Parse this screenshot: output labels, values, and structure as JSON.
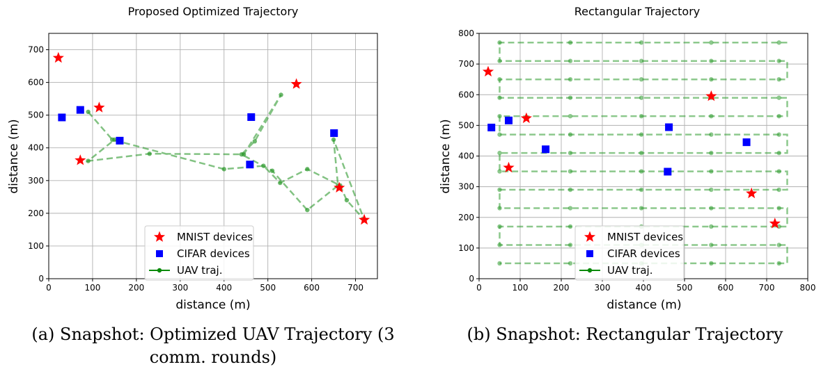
{
  "chart_data": [
    {
      "type": "scatter",
      "title": "Proposed Optimized Trajectory",
      "xlabel": "distance (m)",
      "ylabel": "distance (m)",
      "xlim": [
        0,
        750
      ],
      "ylim": [
        0,
        750
      ],
      "xticks": [
        0,
        100,
        200,
        300,
        400,
        500,
        600,
        700
      ],
      "yticks": [
        0,
        100,
        200,
        300,
        400,
        500,
        600,
        700
      ],
      "grid": true,
      "legend_position": "lower-center",
      "series": [
        {
          "name": "MNIST devices",
          "marker": "star",
          "color": "#ff0000",
          "x": [
            22,
            115,
            72,
            565,
            663,
            720
          ],
          "y": [
            675,
            523,
            362,
            595,
            278,
            180
          ]
        },
        {
          "name": "CIFAR devices",
          "marker": "square",
          "color": "#0000ff",
          "x": [
            30,
            72,
            162,
            462,
            459,
            651
          ],
          "y": [
            493,
            516,
            422,
            494,
            349,
            445
          ]
        },
        {
          "name": "UAV traj.",
          "marker": "circle-line",
          "color": "#2e9a2e",
          "x": [
            90,
            145,
            400,
            490,
            528,
            590,
            665,
            680,
            720,
            650,
            660,
            590,
            510,
            440,
            470,
            530,
            445,
            230,
            90,
            150
          ],
          "y": [
            510,
            425,
            335,
            345,
            293,
            335,
            285,
            240,
            180,
            425,
            285,
            210,
            330,
            380,
            420,
            562,
            380,
            382,
            360,
            425
          ]
        }
      ]
    },
    {
      "type": "scatter",
      "title": "Rectangular Trajectory",
      "xlabel": "distance (m)",
      "ylabel": "distance (m)",
      "xlim": [
        0,
        800
      ],
      "ylim": [
        0,
        800
      ],
      "xticks": [
        0,
        100,
        200,
        300,
        400,
        500,
        600,
        700,
        800
      ],
      "yticks": [
        0,
        100,
        200,
        300,
        400,
        500,
        600,
        700,
        800
      ],
      "grid": true,
      "legend_position": "lower-center",
      "series": [
        {
          "name": "MNIST devices",
          "marker": "star",
          "color": "#ff0000",
          "x": [
            22,
            115,
            72,
            565,
            663,
            720
          ],
          "y": [
            675,
            523,
            362,
            595,
            278,
            180
          ]
        },
        {
          "name": "CIFAR devices",
          "marker": "square",
          "color": "#0000ff",
          "x": [
            30,
            72,
            162,
            462,
            459,
            651
          ],
          "y": [
            493,
            516,
            422,
            494,
            349,
            445
          ]
        },
        {
          "name": "UAV traj.",
          "marker": "circle-line",
          "color": "#2e9a2e",
          "rows_y": [
            770,
            710,
            650,
            590,
            530,
            470,
            410,
            350,
            290,
            230,
            170,
            110,
            50
          ],
          "x_left": 50,
          "x_right": 750,
          "x_points": [
            50,
            222,
            395,
            565,
            730
          ]
        }
      ]
    }
  ],
  "captions": {
    "left_line1": "(a) Snapshot: Optimized UAV Trajectory (3",
    "left_line2": "comm. rounds)",
    "right": "(b) Snapshot: Rectangular Trajectory"
  },
  "colors": {
    "mnist": "#ff0000",
    "cifar": "#0000ff",
    "uav": "#2e9a2e",
    "grid": "#b0b0b0"
  }
}
